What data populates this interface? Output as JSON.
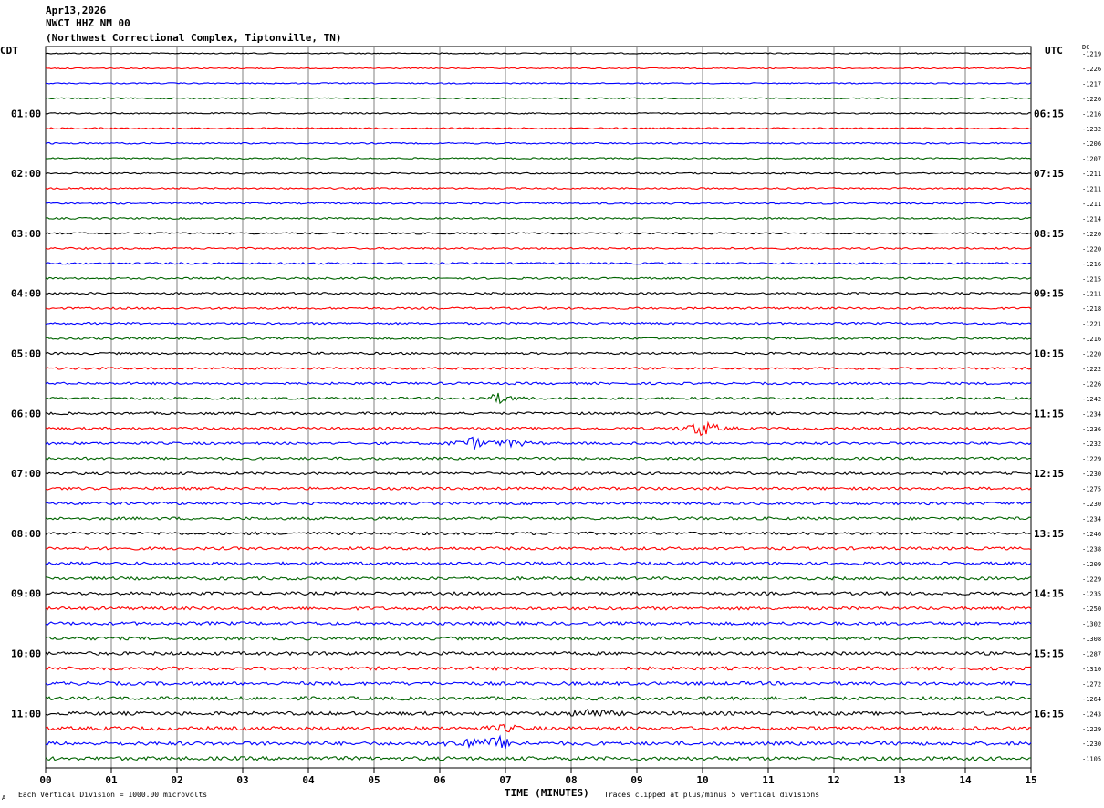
{
  "header": {
    "date": "Apr13,2026",
    "station": "NWCT HHZ NM 00",
    "location": "(Northwest Correctional Complex, Tiptonville, TN)"
  },
  "left_tz": "CDT",
  "right_tz": "UTC",
  "dc_label": "DC",
  "footer": {
    "scale_note": "Each Vertical Division = 1000.00 microvolts",
    "xlabel": "TIME (MINUTES)",
    "clip_note": "Traces clipped at plus/minus 5 vertical divisions",
    "logo": "A"
  },
  "colors": {
    "trace_cycle": [
      "#000000",
      "#ff0000",
      "#0000ff",
      "#006400"
    ],
    "grid": "#808080"
  },
  "chart_data": {
    "type": "line",
    "subtype": "helicorder",
    "xlabel": "TIME (MINUTES)",
    "xlim": [
      0,
      15
    ],
    "x_ticks": [
      "00",
      "01",
      "02",
      "03",
      "04",
      "05",
      "06",
      "07",
      "08",
      "09",
      "10",
      "11",
      "12",
      "13",
      "14",
      "15"
    ],
    "minutes_per_trace": 15,
    "trace_count": 48,
    "left_time_labels": [
      "01:00",
      "02:00",
      "03:00",
      "04:00",
      "05:00",
      "06:00",
      "07:00",
      "08:00",
      "09:00",
      "10:00",
      "11:00"
    ],
    "right_time_labels": [
      "06:15",
      "07:15",
      "08:15",
      "09:15",
      "10:15",
      "11:15",
      "12:15",
      "13:15",
      "14:15",
      "15:15",
      "16:15"
    ],
    "dc_offsets": [
      -1219,
      -1226,
      -1217,
      -1226,
      -1216,
      -1232,
      -1206,
      -1207,
      -1211,
      -1211,
      -1211,
      -1214,
      -1220,
      -1220,
      -1216,
      -1215,
      -1211,
      -1218,
      -1221,
      -1216,
      -1220,
      -1222,
      -1226,
      -1242,
      -1234,
      -1236,
      -1232,
      -1229,
      -1230,
      -1275,
      -1230,
      -1234,
      -1246,
      -1238,
      -1209,
      -1229,
      -1235,
      -1250,
      -1302,
      -1308,
      -1287,
      -1310,
      -1272,
      -1264,
      -1243,
      -1229,
      -1230,
      -1105
    ],
    "events": [
      {
        "trace": 23,
        "minute": 6.9,
        "amplitude": 0.9
      },
      {
        "trace": 25,
        "minute": 10.0,
        "amplitude": 1.6
      },
      {
        "trace": 26,
        "minute": 6.5,
        "amplitude": 1.1
      },
      {
        "trace": 26,
        "minute": 7.1,
        "amplitude": 0.7
      },
      {
        "trace": 44,
        "minute": 8.3,
        "amplitude": 1.0
      },
      {
        "trace": 45,
        "minute": 7.0,
        "amplitude": 0.6
      },
      {
        "trace": 46,
        "minute": 6.4,
        "amplitude": 1.0
      },
      {
        "trace": 46,
        "minute": 6.9,
        "amplitude": 1.2
      }
    ]
  }
}
